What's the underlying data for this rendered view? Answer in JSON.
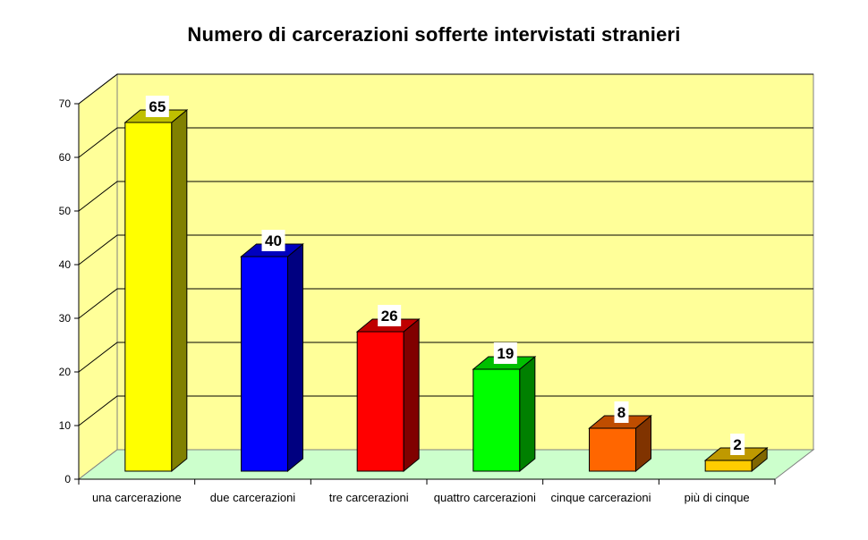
{
  "chart_data": {
    "type": "bar",
    "style": "3d-column",
    "title": "Numero di carcerazioni sofferte intervistati stranieri",
    "xlabel": "",
    "ylabel": "",
    "categories": [
      "una carcerazione",
      "due carcerazioni",
      "tre carcerazioni",
      "quattro carcerazioni",
      "cinque carcerazioni",
      "più di cinque"
    ],
    "values": [
      65,
      40,
      26,
      19,
      8,
      2
    ],
    "data_labels": [
      "65",
      "40",
      "26",
      "19",
      "8",
      "2"
    ],
    "bar_colors": [
      "#ffff00",
      "#0000ff",
      "#ff0000",
      "#00ff00",
      "#ff6600",
      "#ffcc00"
    ],
    "ylim": [
      0,
      70
    ],
    "yticks": [
      0,
      10,
      20,
      30,
      40,
      50,
      60,
      70
    ],
    "grid": true,
    "legend": null,
    "wall_color": "#ffff99",
    "floor_color": "#ccffcc"
  }
}
